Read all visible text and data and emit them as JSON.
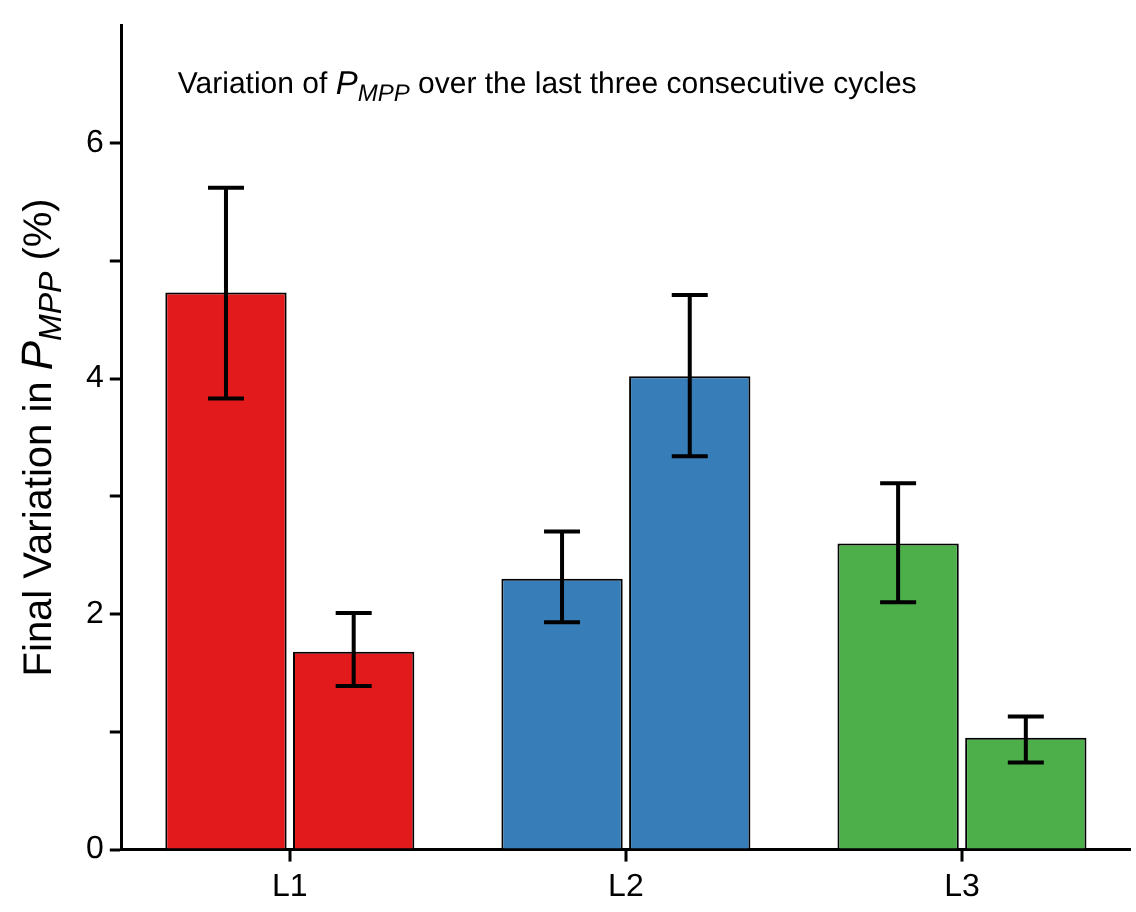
{
  "chart_data": {
    "type": "bar",
    "annotations": [
      "Variation of P$_{MPP}$ over the last three consecutive cycles"
    ],
    "ylabel": "Final Variation in P$_{MPP}$ (%)",
    "categories": [
      "L1",
      "L2",
      "L3"
    ],
    "series": [
      {
        "colors": [
          "#e31a1c",
          "#377eb8",
          "#4daf4a"
        ],
        "values": [
          4.73,
          2.3,
          2.6
        ],
        "errors": [
          [
            3.83,
            5.62
          ],
          [
            1.93,
            2.7
          ],
          [
            2.1,
            3.11
          ]
        ]
      },
      {
        "colors": [
          "#e31a1c",
          "#377eb8",
          "#4daf4a"
        ],
        "values": [
          1.68,
          4.02,
          0.95
        ],
        "errors": [
          [
            1.39,
            2.01
          ],
          [
            3.34,
            4.71
          ],
          [
            0.74,
            1.13
          ]
        ]
      }
    ],
    "ylim": [
      0,
      7
    ],
    "yticks": [
      0,
      {
        "value": 1,
        "label": null
      },
      2,
      {
        "value": 3,
        "label": null
      },
      4,
      {
        "value": 5,
        "label": null
      },
      6
    ],
    "grid": false,
    "legend": false
  }
}
